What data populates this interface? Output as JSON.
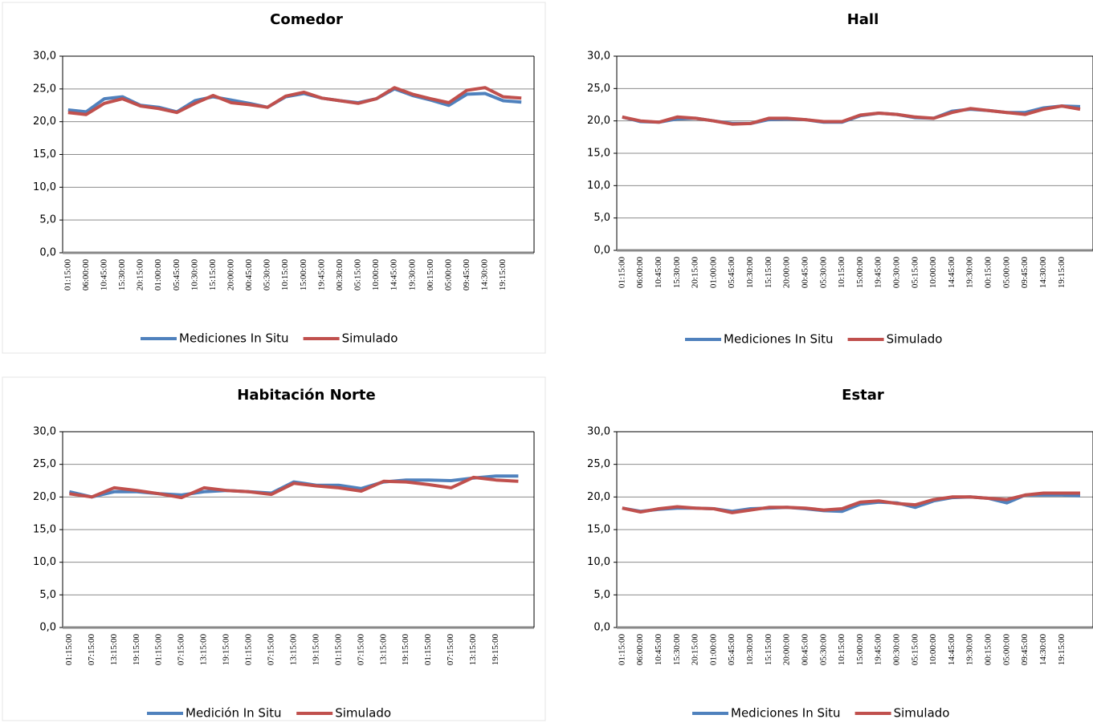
{
  "chart_data": [
    {
      "type": "line",
      "title": "Comedor",
      "categories": [
        "01:15:00",
        "06:00:00",
        "10:45:00",
        "15:30:00",
        "20:15:00",
        "01:00:00",
        "05:45:00",
        "10:30:00",
        "15:15:00",
        "20:00:00",
        "00:45:00",
        "05:30:00",
        "10:15:00",
        "15:00:00",
        "19:45:00",
        "00:30:00",
        "05:15:00",
        "10:00:00",
        "14:45:00",
        "19:30:00",
        "00:15:00",
        "05:00:00",
        "09:45:00",
        "14:30:00",
        "19:15:00",
        null
      ],
      "series": [
        {
          "name": "Mediciones In Situ",
          "color": "#4f81bd",
          "values": [
            21.8,
            21.5,
            23.5,
            23.8,
            22.5,
            22.2,
            21.5,
            23.2,
            23.8,
            23.3,
            22.8,
            22.2,
            23.8,
            24.3,
            23.6,
            23.2,
            22.9,
            23.5,
            25.0,
            24.0,
            23.3,
            22.5,
            24.2,
            24.3,
            23.2,
            23.0
          ]
        },
        {
          "name": "Simulado",
          "color": "#c0504d",
          "values": [
            21.4,
            21.1,
            22.8,
            23.5,
            22.4,
            22.0,
            21.4,
            22.8,
            24.0,
            22.9,
            22.6,
            22.2,
            23.9,
            24.5,
            23.6,
            23.2,
            22.8,
            23.5,
            25.2,
            24.2,
            23.5,
            22.9,
            24.8,
            25.2,
            23.8,
            23.6
          ]
        }
      ],
      "ylim": [
        0,
        30
      ],
      "yticks": [
        {
          "value": 0,
          "label": "0,0"
        },
        {
          "value": 5,
          "label": "5,0"
        },
        {
          "value": 10,
          "label": "10,0"
        },
        {
          "value": 15,
          "label": "15,0"
        },
        {
          "value": 20,
          "label": "20,0"
        },
        {
          "value": 25,
          "label": "25,0"
        },
        {
          "value": 30,
          "label": "30,0"
        }
      ],
      "grid": true
    },
    {
      "type": "line",
      "title": "Hall",
      "categories": [
        "01:15:00",
        "06:00:00",
        "10:45:00",
        "15:30:00",
        "20:15:00",
        "01:00:00",
        "05:45:00",
        "10:30:00",
        "15:15:00",
        "20:00:00",
        "00:45:00",
        "05:30:00",
        "10:15:00",
        "15:00:00",
        "19:45:00",
        "00:30:00",
        "05:15:00",
        "10:00:00",
        "14:45:00",
        "19:30:00",
        "00:15:00",
        "05:00:00",
        "09:45:00",
        "14:30:00",
        "19:15:00",
        null
      ],
      "series": [
        {
          "name": "Mediciones In Situ",
          "color": "#4f81bd",
          "values": [
            20.6,
            19.9,
            19.8,
            20.3,
            20.4,
            20.0,
            19.6,
            19.6,
            20.2,
            20.3,
            20.2,
            19.8,
            19.8,
            20.8,
            21.2,
            21.0,
            20.5,
            20.4,
            21.5,
            21.8,
            21.6,
            21.3,
            21.3,
            22.0,
            22.3,
            22.2
          ]
        },
        {
          "name": "Simulado",
          "color": "#c0504d",
          "values": [
            20.6,
            20.0,
            19.8,
            20.6,
            20.4,
            20.0,
            19.5,
            19.6,
            20.4,
            20.4,
            20.2,
            19.9,
            19.9,
            20.9,
            21.2,
            21.0,
            20.6,
            20.4,
            21.3,
            21.9,
            21.6,
            21.3,
            21.0,
            21.8,
            22.3,
            21.8
          ]
        }
      ],
      "ylim": [
        0,
        30
      ],
      "yticks": [
        {
          "value": 0,
          "label": "0,0"
        },
        {
          "value": 5,
          "label": "5,0"
        },
        {
          "value": 10,
          "label": "10,0"
        },
        {
          "value": 15,
          "label": "15,0"
        },
        {
          "value": 20,
          "label": "20,0"
        },
        {
          "value": 25,
          "label": "25,0"
        },
        {
          "value": 30,
          "label": "30,0"
        }
      ],
      "grid": true
    },
    {
      "type": "line",
      "title": "Habitación Norte",
      "categories": [
        "01:15:00",
        "07:15:00",
        "13:15:00",
        "19:15:00",
        "01:15:00",
        "07:15:00",
        "13:15:00",
        "19:15:00",
        "01:15:00",
        "07:15:00",
        "13:15:00",
        "19:15:00",
        "01:15:00",
        "07:15:00",
        "13:15:00",
        "19:15:00",
        "01:15:00",
        "07:15:00",
        "13:15:00",
        "19:15:00",
        null
      ],
      "series": [
        {
          "name": "Medición In Situ",
          "color": "#4f81bd",
          "values": [
            20.8,
            20.0,
            20.8,
            20.8,
            20.5,
            20.3,
            20.8,
            21.0,
            20.8,
            20.6,
            22.3,
            21.8,
            21.8,
            21.3,
            22.3,
            22.6,
            22.6,
            22.5,
            22.9,
            23.2,
            23.2
          ]
        },
        {
          "name": "Simulado",
          "color": "#c0504d",
          "values": [
            20.5,
            20.0,
            21.4,
            21.0,
            20.5,
            19.9,
            21.4,
            21.0,
            20.8,
            20.4,
            22.1,
            21.7,
            21.4,
            20.9,
            22.4,
            22.3,
            21.9,
            21.4,
            23.0,
            22.6,
            22.4
          ]
        }
      ],
      "ylim": [
        0,
        30
      ],
      "yticks": [
        {
          "value": 0,
          "label": "0,0"
        },
        {
          "value": 5,
          "label": "5,0"
        },
        {
          "value": 10,
          "label": "10,0"
        },
        {
          "value": 15,
          "label": "15,0"
        },
        {
          "value": 20,
          "label": "20,0"
        },
        {
          "value": 25,
          "label": "25,0"
        },
        {
          "value": 30,
          "label": "30,0"
        }
      ],
      "grid": true
    },
    {
      "type": "line",
      "title": "Estar",
      "categories": [
        "01:15:00",
        "06:00:00",
        "10:45:00",
        "15:30:00",
        "20:15:00",
        "01:00:00",
        "05:45:00",
        "10:30:00",
        "15:15:00",
        "20:00:00",
        "00:45:00",
        "05:30:00",
        "10:15:00",
        "15:00:00",
        "19:45:00",
        "00:30:00",
        "05:15:00",
        "10:00:00",
        "14:45:00",
        "19:30:00",
        "00:15:00",
        "05:00:00",
        "09:45:00",
        "14:30:00",
        "19:15:00",
        null
      ],
      "series": [
        {
          "name": "Mediciones In Situ",
          "color": "#4f81bd",
          "values": [
            18.3,
            17.8,
            18.1,
            18.3,
            18.3,
            18.2,
            17.8,
            18.2,
            18.3,
            18.4,
            18.2,
            17.9,
            17.8,
            18.9,
            19.2,
            19.1,
            18.4,
            19.4,
            19.9,
            20.0,
            19.8,
            19.1,
            20.3,
            20.3,
            20.3,
            20.2
          ]
        },
        {
          "name": "Simulado",
          "color": "#c0504d",
          "values": [
            18.3,
            17.7,
            18.2,
            18.5,
            18.3,
            18.2,
            17.6,
            18.0,
            18.4,
            18.4,
            18.3,
            18.0,
            18.2,
            19.2,
            19.4,
            19.0,
            18.8,
            19.6,
            20.0,
            20.0,
            19.8,
            19.6,
            20.3,
            20.6,
            20.6,
            20.6
          ]
        }
      ],
      "ylim": [
        0,
        30
      ],
      "yticks": [
        {
          "value": 0,
          "label": "0,0"
        },
        {
          "value": 5,
          "label": "5,0"
        },
        {
          "value": 10,
          "label": "10,0"
        },
        {
          "value": 15,
          "label": "15,0"
        },
        {
          "value": 20,
          "label": "20,0"
        },
        {
          "value": 25,
          "label": "25,0"
        },
        {
          "value": 30,
          "label": "30,0"
        }
      ],
      "grid": true
    }
  ]
}
